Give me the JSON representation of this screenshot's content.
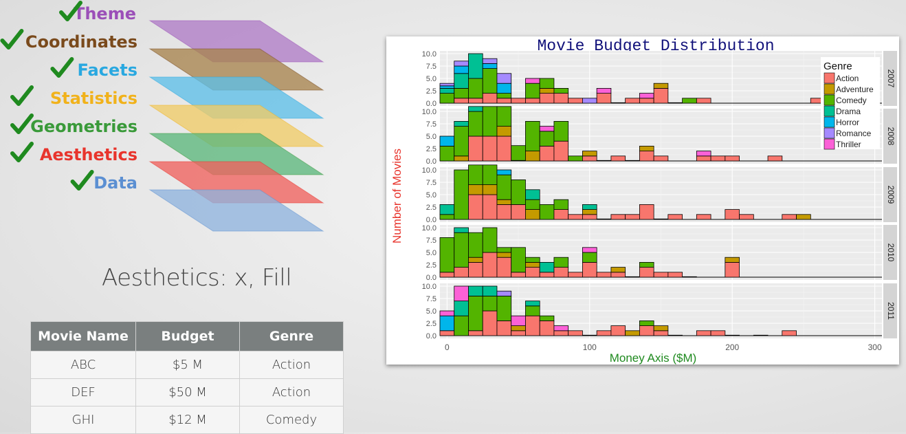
{
  "layers": [
    {
      "label": "Theme",
      "color": "#9b4fb8",
      "fill": "#b07cc6"
    },
    {
      "label": "Coordinates",
      "color": "#7a4a1c",
      "fill": "#a8844e"
    },
    {
      "label": "Facets",
      "color": "#29a8e0",
      "fill": "#5ebfe8"
    },
    {
      "label": "Statistics",
      "color": "#f1b21b",
      "fill": "#f0cc68"
    },
    {
      "label": "Geometries",
      "color": "#3a9a3a",
      "fill": "#5cb77c"
    },
    {
      "label": "Aesthetics",
      "color": "#e8342c",
      "fill": "#f0615d"
    },
    {
      "label": "Data",
      "color": "#5b8fd2",
      "fill": "#8fb4de"
    }
  ],
  "check_color": "#1f8a1f",
  "aes_caption": "Aesthetics: x, Fill",
  "table": {
    "headers": [
      "Movie Name",
      "Budget",
      "Genre"
    ],
    "rows": [
      [
        "ABC",
        "$5 M",
        "Action"
      ],
      [
        "DEF",
        "$50 M",
        "Action"
      ],
      [
        "GHI",
        "$12 M",
        "Comedy"
      ]
    ]
  },
  "chart_data": {
    "type": "bar",
    "subtype": "stacked histogram, faceted by year",
    "title": "Movie Budget Distribution",
    "xlabel": "Money Axis ($M)",
    "ylabel": "Number of Movies",
    "xlim": [
      -5,
      305
    ],
    "ylim": [
      0,
      10
    ],
    "x_ticks": [
      0,
      100,
      200,
      300
    ],
    "y_ticks": [
      "0.0",
      "2.5",
      "5.0",
      "7.5",
      "10.0"
    ],
    "bin_width": 10,
    "legend_title": "Genre",
    "legend_position": "top-right",
    "genres": [
      "Action",
      "Adventure",
      "Comedy",
      "Drama",
      "Horror",
      "Romance",
      "Thriller"
    ],
    "colors": {
      "Action": "#f8766d",
      "Adventure": "#c49a00",
      "Comedy": "#53b400",
      "Drama": "#00c094",
      "Horror": "#00b6eb",
      "Romance": "#a58aff",
      "Thriller": "#fb61d7"
    },
    "facets": [
      {
        "label": "2007",
        "bins": [
          {
            "x": 0,
            "Action": 0,
            "Comedy": 2,
            "Drama": 1,
            "Horror": 0.5,
            "Romance": 0.5
          },
          {
            "x": 10,
            "Action": 1,
            "Comedy": 2,
            "Drama": 3,
            "Horror": 1.5,
            "Romance": 1
          },
          {
            "x": 20,
            "Action": 1,
            "Comedy": 4,
            "Drama": 5
          },
          {
            "x": 30,
            "Action": 2,
            "Comedy": 5,
            "Horror": 1,
            "Romance": 1
          },
          {
            "x": 40,
            "Action": 1,
            "Comedy": 1,
            "Horror": 2,
            "Romance": 2
          },
          {
            "x": 50,
            "Action": 1
          },
          {
            "x": 60,
            "Action": 1,
            "Comedy": 3,
            "Thriller": 1
          },
          {
            "x": 70,
            "Action": 2,
            "Comedy": 2,
            "Adventure": 1
          },
          {
            "x": 80,
            "Action": 2,
            "Comedy": 1
          },
          {
            "x": 90,
            "Action": 1
          },
          {
            "x": 100,
            "Romance": 1
          },
          {
            "x": 110,
            "Action": 2,
            "Thriller": 1
          },
          {
            "x": 120,
            "Action": 0.1
          },
          {
            "x": 130,
            "Action": 1
          },
          {
            "x": 140,
            "Action": 1,
            "Thriller": 1
          },
          {
            "x": 150,
            "Action": 3,
            "Adventure": 1
          },
          {
            "x": 160,
            "Action": 0.1
          },
          {
            "x": 170,
            "Comedy": 1
          },
          {
            "x": 180,
            "Action": 1
          },
          {
            "x": 260,
            "Action": 1
          }
        ]
      },
      {
        "label": "2008",
        "bins": [
          {
            "x": 0,
            "Comedy": 3,
            "Horror": 2
          },
          {
            "x": 10,
            "Adventure": 1,
            "Comedy": 6,
            "Drama": 1
          },
          {
            "x": 20,
            "Action": 5,
            "Comedy": 5,
            "Drama": 1
          },
          {
            "x": 30,
            "Action": 5,
            "Comedy": 6
          },
          {
            "x": 40,
            "Action": 5,
            "Adventure": 2,
            "Comedy": 4
          },
          {
            "x": 50,
            "Action": 0.1,
            "Comedy": 3
          },
          {
            "x": 60,
            "Adventure": 2,
            "Comedy": 6
          },
          {
            "x": 70,
            "Action": 3,
            "Comedy": 3,
            "Thriller": 1
          },
          {
            "x": 80,
            "Action": 4,
            "Comedy": 4
          },
          {
            "x": 90,
            "Comedy": 1
          },
          {
            "x": 100,
            "Adventure": 1,
            "Action": 1
          },
          {
            "x": 110,
            "Action": 0.1
          },
          {
            "x": 120,
            "Action": 1
          },
          {
            "x": 130,
            "Action": 0.1
          },
          {
            "x": 140,
            "Action": 2,
            "Adventure": 1
          },
          {
            "x": 150,
            "Action": 1
          },
          {
            "x": 180,
            "Action": 1,
            "Thriller": 1
          },
          {
            "x": 190,
            "Action": 1
          },
          {
            "x": 200,
            "Action": 1
          },
          {
            "x": 230,
            "Action": 1
          }
        ]
      },
      {
        "label": "2009",
        "bins": [
          {
            "x": 0,
            "Comedy": 1,
            "Drama": 2
          },
          {
            "x": 10,
            "Comedy": 10
          },
          {
            "x": 20,
            "Action": 5,
            "Adventure": 2,
            "Comedy": 4
          },
          {
            "x": 30,
            "Action": 5,
            "Adventure": 2,
            "Comedy": 4
          },
          {
            "x": 40,
            "Action": 3,
            "Adventure": 1,
            "Comedy": 5,
            "Horror": 1
          },
          {
            "x": 50,
            "Action": 3,
            "Comedy": 5
          },
          {
            "x": 60,
            "Adventure": 2,
            "Comedy": 2,
            "Drama": 2
          },
          {
            "x": 70,
            "Comedy": 3
          },
          {
            "x": 80,
            "Action": 2,
            "Comedy": 2
          },
          {
            "x": 90,
            "Action": 1
          },
          {
            "x": 100,
            "Action": 1,
            "Adventure": 1,
            "Drama": 1
          },
          {
            "x": 110,
            "Action": 0.1
          },
          {
            "x": 120,
            "Action": 1
          },
          {
            "x": 130,
            "Action": 1
          },
          {
            "x": 140,
            "Action": 3
          },
          {
            "x": 150,
            "Action": 0.1
          },
          {
            "x": 160,
            "Action": 1
          },
          {
            "x": 180,
            "Action": 1
          },
          {
            "x": 200,
            "Action": 2
          },
          {
            "x": 210,
            "Action": 1
          },
          {
            "x": 240,
            "Action": 1
          },
          {
            "x": 250,
            "Adventure": 1
          }
        ]
      },
      {
        "label": "2010",
        "bins": [
          {
            "x": 0,
            "Action": 1,
            "Comedy": 7
          },
          {
            "x": 10,
            "Action": 2,
            "Comedy": 7,
            "Drama": 1
          },
          {
            "x": 20,
            "Action": 3,
            "Adventure": 1,
            "Comedy": 5
          },
          {
            "x": 30,
            "Action": 5,
            "Comedy": 5
          },
          {
            "x": 40,
            "Action": 4,
            "Adventure": 1,
            "Comedy": 1
          },
          {
            "x": 50,
            "Action": 1,
            "Comedy": 5
          },
          {
            "x": 60,
            "Action": 2,
            "Adventure": 1,
            "Comedy": 1
          },
          {
            "x": 70,
            "Action": 1,
            "Drama": 2
          },
          {
            "x": 80,
            "Action": 2,
            "Comedy": 2
          },
          {
            "x": 90,
            "Action": 1
          },
          {
            "x": 100,
            "Action": 3,
            "Comedy": 2,
            "Thriller": 1
          },
          {
            "x": 110,
            "Action": 1
          },
          {
            "x": 120,
            "Action": 1,
            "Adventure": 1
          },
          {
            "x": 130,
            "Action": 0.1
          },
          {
            "x": 140,
            "Action": 2,
            "Comedy": 1
          },
          {
            "x": 150,
            "Action": 1
          },
          {
            "x": 160,
            "Action": 1
          },
          {
            "x": 170,
            "Action": 0.1
          },
          {
            "x": 200,
            "Action": 3,
            "Adventure": 1
          }
        ]
      },
      {
        "label": "2011",
        "bins": [
          {
            "x": 0,
            "Action": 1,
            "Horror": 3,
            "Thriller": 1
          },
          {
            "x": 10,
            "Comedy": 4,
            "Drama": 3,
            "Thriller": 3
          },
          {
            "x": 20,
            "Action": 1,
            "Comedy": 7,
            "Drama": 2
          },
          {
            "x": 30,
            "Action": 5,
            "Comedy": 3,
            "Drama": 2
          },
          {
            "x": 40,
            "Action": 3,
            "Comedy": 5,
            "Romance": 1
          },
          {
            "x": 50,
            "Action": 1,
            "Adventure": 1,
            "Thriller": 2
          },
          {
            "x": 60,
            "Action": 4,
            "Comedy": 2,
            "Drama": 1
          },
          {
            "x": 70,
            "Action": 3,
            "Comedy": 1
          },
          {
            "x": 80,
            "Action": 1,
            "Thriller": 1
          },
          {
            "x": 90,
            "Action": 1
          },
          {
            "x": 100,
            "Action": 0.1
          },
          {
            "x": 110,
            "Action": 1
          },
          {
            "x": 120,
            "Action": 2
          },
          {
            "x": 130,
            "Adventure": 1
          },
          {
            "x": 140,
            "Action": 2,
            "Comedy": 1
          },
          {
            "x": 150,
            "Action": 1,
            "Adventure": 1
          },
          {
            "x": 160,
            "Action": 0.1
          },
          {
            "x": 180,
            "Action": 1
          },
          {
            "x": 190,
            "Action": 1
          },
          {
            "x": 200,
            "Action": 0.1
          },
          {
            "x": 220,
            "Action": 0.1
          },
          {
            "x": 240,
            "Action": 1
          }
        ]
      }
    ]
  }
}
